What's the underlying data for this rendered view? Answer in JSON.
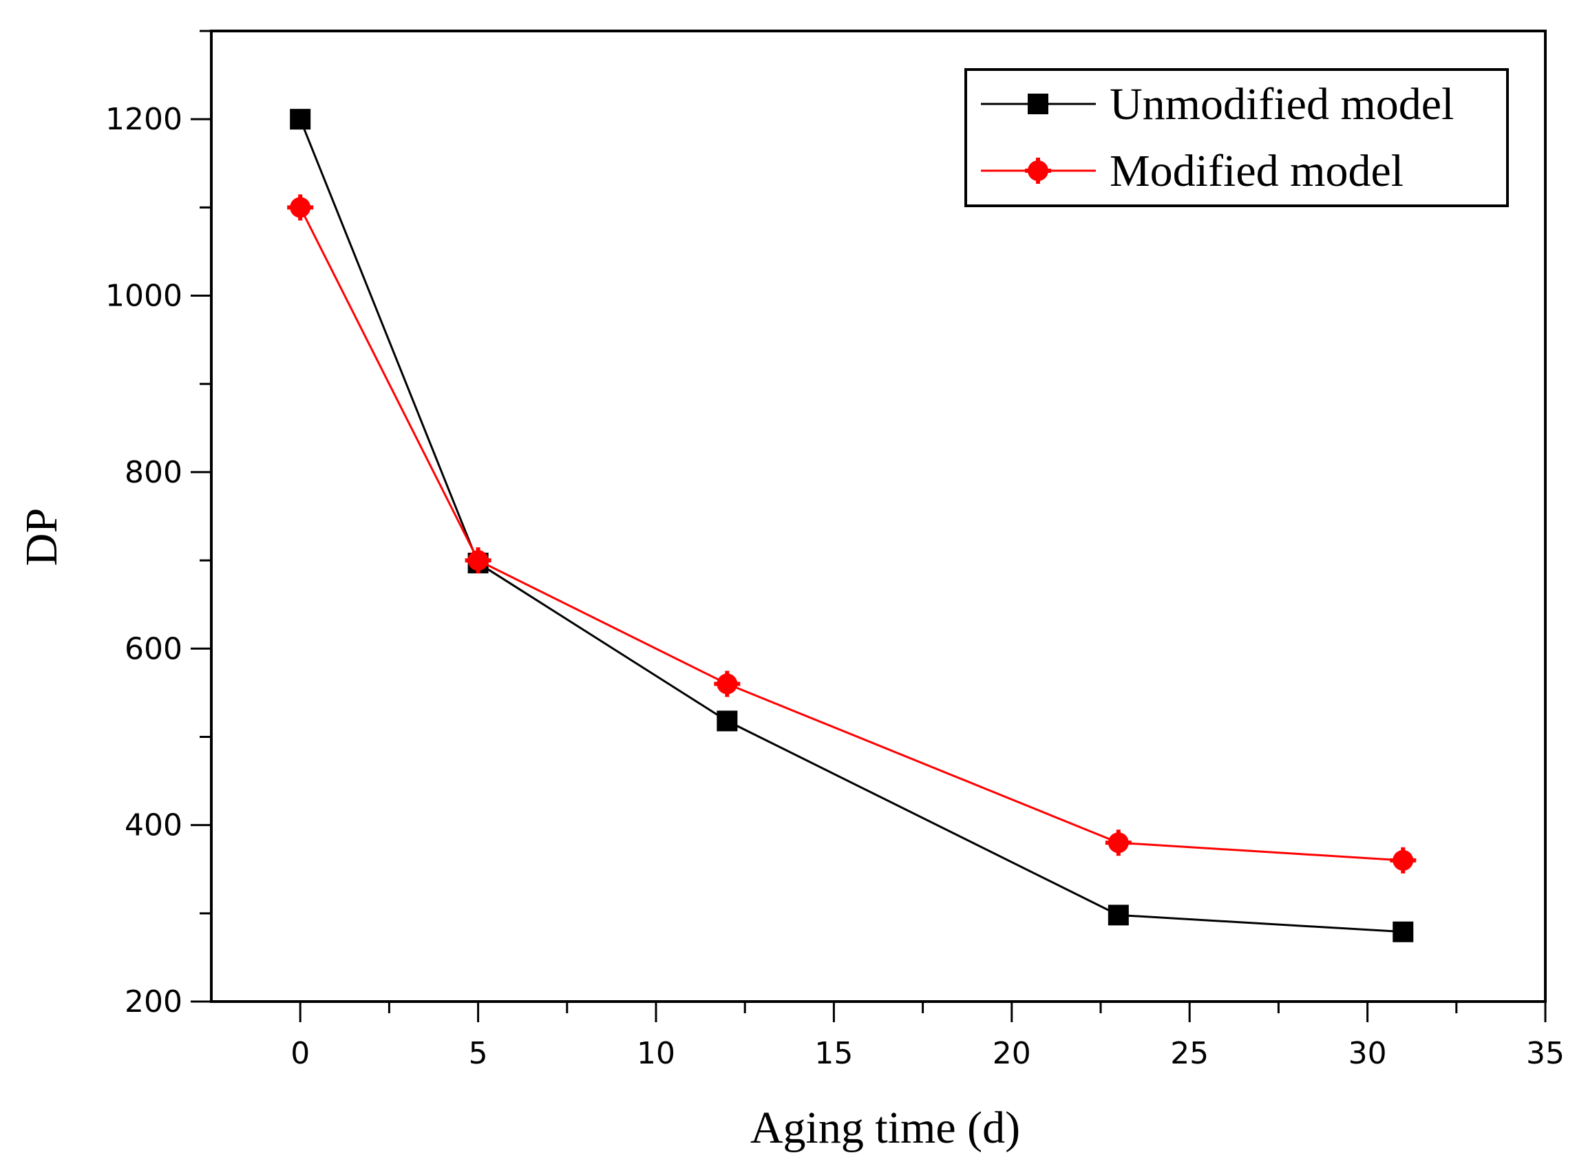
{
  "chart_data": {
    "type": "line",
    "title": "",
    "xlabel": "Aging time (d)",
    "ylabel": "DP",
    "xlim": [
      -2.5,
      35
    ],
    "ylim": [
      200,
      1300
    ],
    "x_ticks": [
      0,
      5,
      10,
      15,
      20,
      25,
      30,
      35
    ],
    "y_ticks": [
      200,
      400,
      600,
      800,
      1000,
      1200
    ],
    "x_tick_labels": [
      "0",
      "5",
      "10",
      "15",
      "20",
      "25",
      "30",
      "35"
    ],
    "y_tick_labels": [
      "200",
      "400",
      "600",
      "800",
      "1000",
      "1200"
    ],
    "grid": false,
    "legend_position": "top-right",
    "series": [
      {
        "name": "Unmodified model",
        "marker": "square",
        "color": "#000000",
        "x": [
          0,
          5,
          12,
          23,
          31
        ],
        "values": [
          1200,
          697,
          518,
          298,
          279
        ]
      },
      {
        "name": "Modified model",
        "marker": "circle",
        "color": "#ff0000",
        "x": [
          0,
          5,
          12,
          23,
          31
        ],
        "values": [
          1100,
          700,
          560,
          380,
          360
        ]
      }
    ]
  }
}
